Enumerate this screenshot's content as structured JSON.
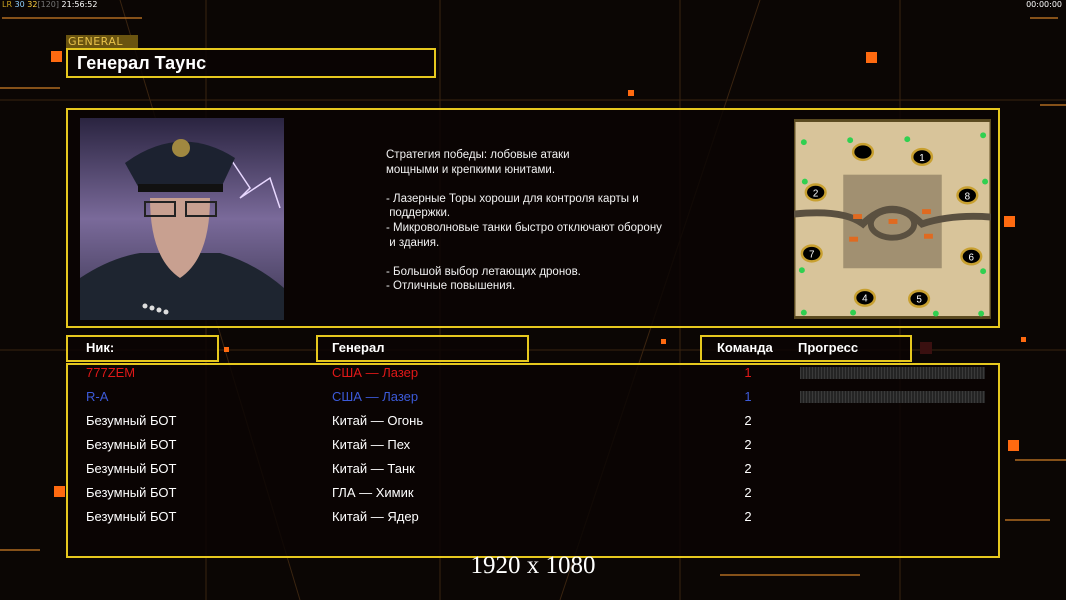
{
  "status_bar": {
    "fps_prefix": "LR",
    "fps_a": "30",
    "fps_b": "32",
    "fps_cap": "[120]",
    "clock": "21:56:52",
    "timer": "00:00:00"
  },
  "general": {
    "tag": "GENERAL",
    "name": "Генерал Таунс"
  },
  "description": "Стратегия победы: лобовые атаки\nмощными и крепкими юнитами.\n\n- Лазерные Торы хороши для контроля карты и\n поддержки.\n- Микроволновые танки быстро отключают оборону\n и здания.\n\n- Большой выбор летающих дронов.\n- Отличные повышения.",
  "map": {
    "start_positions": [
      "1",
      "2",
      "4",
      "5",
      "6",
      "7",
      "8"
    ]
  },
  "table": {
    "headers": {
      "nick": "Ник:",
      "general": "Генерал",
      "team": "Команда",
      "progress": "Прогресс"
    },
    "rows": [
      {
        "nick": "777ZEM",
        "general": "США — Лазер",
        "team": "1",
        "color": "#e01818",
        "progress": 0
      },
      {
        "nick": "R-A",
        "general": "США — Лазер",
        "team": "1",
        "color": "#3c5ad8",
        "progress": 0
      },
      {
        "nick": "Безумный БОТ",
        "general": "Китай — Огонь",
        "team": "2",
        "color": "#ffffff"
      },
      {
        "nick": "Безумный БОТ",
        "general": "Китай — Пех",
        "team": "2",
        "color": "#ffffff"
      },
      {
        "nick": "Безумный БОТ",
        "general": "Китай — Танк",
        "team": "2",
        "color": "#ffffff"
      },
      {
        "nick": "Безумный БОТ",
        "general": "ГЛА — Химик",
        "team": "2",
        "color": "#ffffff"
      },
      {
        "nick": "Безумный БОТ",
        "general": "Китай — Ядер",
        "team": "2",
        "color": "#ffffff"
      }
    ]
  },
  "resolution": "1920 x 1080",
  "colors": {
    "accent": "#e6c81e",
    "orange": "#ff6a10"
  }
}
